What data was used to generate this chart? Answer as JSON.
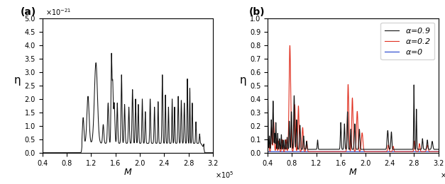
{
  "xlim": [
    40000,
    320000
  ],
  "panel_a": {
    "ylim": [
      0,
      5e-21
    ],
    "ytick_labels": [
      "0.0",
      "0.5",
      "1.0",
      "1.5",
      "2.0",
      "2.5",
      "3.0",
      "3.5",
      "4.0",
      "4.5",
      "5.0"
    ],
    "ytick_vals": [
      0.0,
      5e-22,
      1e-21,
      1.5e-21,
      2e-21,
      2.5e-21,
      3e-21,
      3.5e-21,
      4e-21,
      4.5e-21,
      5e-21
    ],
    "ylabel": "η",
    "xlabel": "M",
    "color": "#111111",
    "yexp_label": "×10⁻²¹"
  },
  "panel_b": {
    "ylim": [
      0,
      1.0
    ],
    "ytick_labels": [
      "0.0",
      "0.1",
      "0.2",
      "0.3",
      "0.4",
      "0.5",
      "0.6",
      "0.7",
      "0.8",
      "0.9",
      "1.0"
    ],
    "ytick_vals": [
      0.0,
      0.1,
      0.2,
      0.3,
      0.4,
      0.5,
      0.6,
      0.7,
      0.8,
      0.9,
      1.0
    ],
    "ylabel": "η",
    "xlabel": "M",
    "color_black": "#111111",
    "color_red": "#e03020",
    "color_blue": "#2040cc"
  },
  "xtick_vals": [
    40000,
    80000,
    120000,
    160000,
    200000,
    240000,
    280000,
    320000
  ],
  "xtick_labels": [
    "0.4",
    "0.8",
    "1.2",
    "1.6",
    "2.0",
    "2.4",
    "2.8",
    "3.2"
  ],
  "xexp_label": "×10⁵",
  "figsize": [
    6.27,
    2.6
  ],
  "dpi": 100
}
